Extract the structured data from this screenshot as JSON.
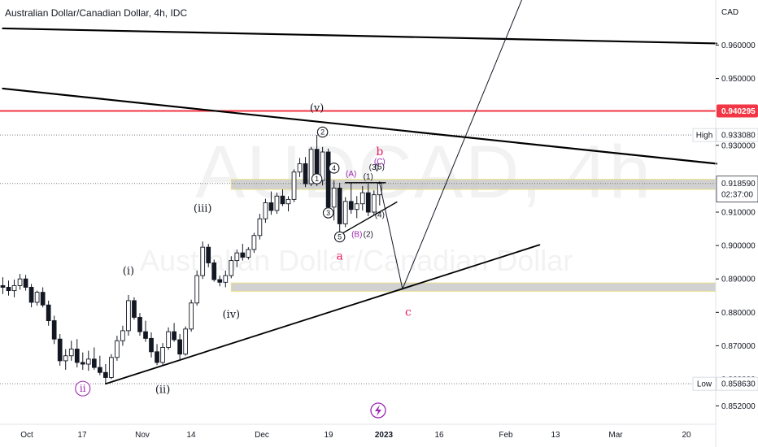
{
  "header": {
    "title": "Australian Dollar/Canadian Dollar, 4h, IDC"
  },
  "watermark": {
    "symbol": "AUDCAD, 4h",
    "name": "Australian Dollar/Canadian Dollar"
  },
  "colors": {
    "accent_red": "#f23645",
    "zone_fill": "#c9c9c9",
    "zone_border": "#e8e08a",
    "wave_purple": "#9c27b0",
    "wave_pink": "#e91e63",
    "bg": "#ffffff",
    "ink": "#131722"
  },
  "chart_data": {
    "type": "candlestick",
    "currency": "CAD",
    "y_axis": {
      "ticks": [
        0.852,
        0.86,
        0.87,
        0.88,
        0.89,
        0.9,
        0.91,
        0.93,
        0.95,
        0.96
      ],
      "tick_labels": [
        "0.852000",
        "0.860000",
        "0.870000",
        "0.880000",
        "0.890000",
        "0.900000",
        "0.910000",
        "0.930000",
        "0.950000",
        "0.960000"
      ],
      "range": [
        0.8465,
        0.9735
      ]
    },
    "x_axis": {
      "tick_labels": [
        "Oct",
        "17",
        "Nov",
        "14",
        "Dec",
        "19",
        "2023",
        "16",
        "Feb",
        "13",
        "Mar",
        "20"
      ]
    },
    "price_labels": [
      {
        "text": "0.940295",
        "value": 0.940295,
        "style": "red"
      },
      {
        "text": "0.933080",
        "value": 0.93308,
        "tag": "High",
        "style": "white"
      },
      {
        "text": "0.918590",
        "value": 0.91859,
        "sub": "02:37:00",
        "style": "current"
      },
      {
        "text": "0.858630",
        "value": 0.85863,
        "tag": "Low",
        "style": "white"
      }
    ],
    "horizontal_lines": [
      {
        "value": 0.940295,
        "style": "red-solid"
      },
      {
        "value": 0.93308,
        "style": "dotted"
      },
      {
        "value": 0.91859,
        "style": "dotted"
      },
      {
        "value": 0.85863,
        "style": "dotted"
      }
    ],
    "zones": [
      {
        "from": 0.9168,
        "to": 0.9198
      },
      {
        "from": 0.8863,
        "to": 0.8888
      }
    ],
    "wave_labels": [
      {
        "text": "(v)",
        "style": "plain",
        "i": 55,
        "v": 0.941
      },
      {
        "text": "(iii)",
        "style": "plain",
        "i": 35,
        "v": 0.911
      },
      {
        "text": "(i)",
        "style": "plain",
        "i": 22,
        "v": 0.8923
      },
      {
        "text": "(iv)",
        "style": "plain",
        "i": 40,
        "v": 0.8792
      },
      {
        "text": "(ii)",
        "style": "plain",
        "i": 28,
        "v": 0.8567
      },
      {
        "text": "ii",
        "style": "circle-purple",
        "i": 14,
        "v": 0.8562
      },
      {
        "text": "2",
        "style": "circle",
        "i": 56,
        "v": 0.933
      },
      {
        "text": "1",
        "style": "circle",
        "i": 55,
        "v": 0.919
      },
      {
        "text": "4",
        "style": "circle",
        "i": 58,
        "v": 0.9222
      },
      {
        "text": "3",
        "style": "circle",
        "i": 57,
        "v": 0.9088
      },
      {
        "text": "5",
        "style": "circle",
        "i": 59,
        "v": 0.9016
      },
      {
        "text": "a",
        "style": "pink",
        "i": 59,
        "v": 0.8968
      },
      {
        "text": "(A)",
        "style": "purple",
        "i": 61,
        "v": 0.9213
      },
      {
        "text": "(B)",
        "style": "purple",
        "i": 62,
        "v": 0.9032
      },
      {
        "text": "(2)",
        "style": "plain-small",
        "i": 64,
        "v": 0.9032
      },
      {
        "text": "(1)",
        "style": "plain-small",
        "i": 64,
        "v": 0.9205
      },
      {
        "text": "(3)",
        "style": "plain-small",
        "i": 65,
        "v": 0.9232
      },
      {
        "text": "(5)",
        "style": "plain-small",
        "i": 66,
        "v": 0.9234
      },
      {
        "text": "(4)",
        "style": "plain-small",
        "i": 66,
        "v": 0.909
      },
      {
        "text": "b",
        "style": "pink",
        "i": 66,
        "v": 0.928
      },
      {
        "text": "(C)",
        "style": "purple",
        "i": 66,
        "v": 0.925
      },
      {
        "text": "c",
        "style": "pink",
        "i": 71,
        "v": 0.88
      }
    ],
    "trendlines": [
      {
        "from": [
          0,
          0.965
        ],
        "to": [
          125,
          0.9605
        ],
        "width": 2.2
      },
      {
        "from": [
          0,
          0.947
        ],
        "to": [
          125,
          0.9245
        ],
        "width": 2.2
      },
      {
        "from": [
          18,
          0.8586
        ],
        "to": [
          94,
          0.9002
        ],
        "width": 1.8
      },
      {
        "from": [
          59,
          0.9032
        ],
        "to": [
          69,
          0.913
        ],
        "width": 1.4
      },
      {
        "from": [
          60,
          0.9188
        ],
        "to": [
          67,
          0.9188
        ],
        "width": 1.4
      }
    ],
    "projection": [
      [
        66,
        0.9185
      ],
      [
        70,
        0.887
      ],
      [
        91,
        0.974
      ]
    ],
    "candles": [
      [
        0.888,
        0.8905,
        0.8855,
        0.8875
      ],
      [
        0.8875,
        0.8895,
        0.885,
        0.8865
      ],
      [
        0.8865,
        0.8898,
        0.8845,
        0.888
      ],
      [
        0.888,
        0.8915,
        0.8868,
        0.89
      ],
      [
        0.89,
        0.8912,
        0.8865,
        0.8875
      ],
      [
        0.8875,
        0.8885,
        0.8815,
        0.883
      ],
      [
        0.883,
        0.8865,
        0.882,
        0.886
      ],
      [
        0.886,
        0.8875,
        0.8815,
        0.8822
      ],
      [
        0.8822,
        0.8835,
        0.876,
        0.8775
      ],
      [
        0.8775,
        0.879,
        0.8705,
        0.872
      ],
      [
        0.872,
        0.8735,
        0.864,
        0.8655
      ],
      [
        0.8655,
        0.869,
        0.8628,
        0.867
      ],
      [
        0.867,
        0.8715,
        0.8655,
        0.869
      ],
      [
        0.869,
        0.872,
        0.8635,
        0.865
      ],
      [
        0.865,
        0.868,
        0.8628,
        0.8645
      ],
      [
        0.8645,
        0.8685,
        0.8625,
        0.866
      ],
      [
        0.866,
        0.8695,
        0.8628,
        0.8635
      ],
      [
        0.8635,
        0.867,
        0.8612,
        0.862
      ],
      [
        0.862,
        0.8645,
        0.8586,
        0.8605
      ],
      [
        0.8605,
        0.8675,
        0.86,
        0.8665
      ],
      [
        0.8665,
        0.873,
        0.8655,
        0.8715
      ],
      [
        0.8715,
        0.876,
        0.87,
        0.8745
      ],
      [
        0.8745,
        0.8852,
        0.873,
        0.8835
      ],
      [
        0.8835,
        0.8845,
        0.8778,
        0.8785
      ],
      [
        0.8785,
        0.8798,
        0.873,
        0.8742
      ],
      [
        0.8742,
        0.8775,
        0.8712,
        0.8722
      ],
      [
        0.8722,
        0.874,
        0.8665,
        0.8682
      ],
      [
        0.8682,
        0.8705,
        0.8642,
        0.865
      ],
      [
        0.865,
        0.8708,
        0.864,
        0.8695
      ],
      [
        0.8695,
        0.8755,
        0.8688,
        0.8742
      ],
      [
        0.8742,
        0.8768,
        0.8712,
        0.8718
      ],
      [
        0.8718,
        0.8735,
        0.866,
        0.8675
      ],
      [
        0.8675,
        0.8758,
        0.867,
        0.875
      ],
      [
        0.875,
        0.8838,
        0.8742,
        0.8828
      ],
      [
        0.8828,
        0.8925,
        0.882,
        0.891
      ],
      [
        0.891,
        0.9012,
        0.89,
        0.8995
      ],
      [
        0.8995,
        0.9005,
        0.8935,
        0.8948
      ],
      [
        0.8948,
        0.8958,
        0.8892,
        0.8898
      ],
      [
        0.8898,
        0.891,
        0.8878,
        0.889
      ],
      [
        0.889,
        0.8925,
        0.8875,
        0.891
      ],
      [
        0.891,
        0.8968,
        0.8902,
        0.8955
      ],
      [
        0.8955,
        0.8988,
        0.8935,
        0.8978
      ],
      [
        0.8978,
        0.9005,
        0.8955,
        0.8965
      ],
      [
        0.8965,
        0.8995,
        0.8958,
        0.8988
      ],
      [
        0.8988,
        0.9038,
        0.8978,
        0.903
      ],
      [
        0.903,
        0.9095,
        0.9018,
        0.908
      ],
      [
        0.908,
        0.914,
        0.9068,
        0.9128
      ],
      [
        0.9128,
        0.9162,
        0.9092,
        0.9105
      ],
      [
        0.9105,
        0.9158,
        0.9095,
        0.9148
      ],
      [
        0.9148,
        0.9168,
        0.9118,
        0.9125
      ],
      [
        0.9125,
        0.9148,
        0.9102,
        0.9138
      ],
      [
        0.9138,
        0.9228,
        0.913,
        0.922
      ],
      [
        0.922,
        0.9262,
        0.9205,
        0.9245
      ],
      [
        0.9245,
        0.9265,
        0.9175,
        0.9185
      ],
      [
        0.9185,
        0.9295,
        0.9178,
        0.9288
      ],
      [
        0.9288,
        0.9331,
        0.9178,
        0.9195
      ],
      [
        0.9195,
        0.9295,
        0.918,
        0.928
      ],
      [
        0.928,
        0.929,
        0.9095,
        0.9115
      ],
      [
        0.9115,
        0.9195,
        0.9075,
        0.9172
      ],
      [
        0.9172,
        0.9188,
        0.9035,
        0.9065
      ],
      [
        0.9065,
        0.9145,
        0.9055,
        0.9132
      ],
      [
        0.9132,
        0.9188,
        0.9095,
        0.9108
      ],
      [
        0.9108,
        0.9148,
        0.9082,
        0.9125
      ],
      [
        0.9125,
        0.9178,
        0.9105,
        0.9158
      ],
      [
        0.9158,
        0.9185,
        0.9088,
        0.91
      ],
      [
        0.91,
        0.9165,
        0.9092,
        0.9152
      ],
      [
        0.9152,
        0.9192,
        0.912,
        0.9186
      ]
    ]
  }
}
